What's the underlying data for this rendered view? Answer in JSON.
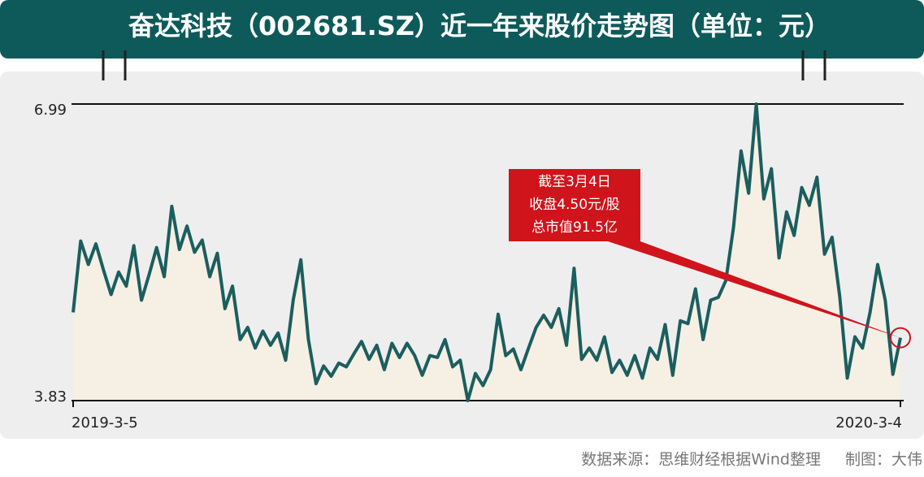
{
  "chart_data": {
    "type": "line",
    "title": "奋达科技（002681.SZ）近一年来股价走势图（单位：元）",
    "categories": [
      "2019-3-5",
      null,
      null,
      null,
      null,
      null,
      null,
      null,
      null,
      null,
      null,
      null,
      null,
      null,
      null,
      null,
      null,
      null,
      null,
      null,
      null,
      null,
      null,
      null,
      null,
      null,
      null,
      null,
      null,
      null,
      null,
      null,
      null,
      null,
      null,
      null,
      null,
      null,
      null,
      null,
      null,
      null,
      null,
      null,
      null,
      null,
      null,
      null,
      null,
      null,
      null,
      null,
      null,
      null,
      null,
      null,
      null,
      null,
      null,
      null,
      null,
      null,
      null,
      null,
      null,
      null,
      null,
      null,
      null,
      null,
      null,
      null,
      null,
      null,
      null,
      null,
      null,
      null,
      null,
      null,
      null,
      null,
      null,
      null,
      null,
      null,
      null,
      null,
      null,
      null,
      null,
      null,
      null,
      null,
      null,
      null,
      null,
      null,
      null,
      null,
      null,
      null,
      null,
      null,
      null,
      null,
      null,
      null,
      null,
      "2020-3-4"
    ],
    "values": [
      4.77,
      5.53,
      5.28,
      5.5,
      5.22,
      4.96,
      5.2,
      5.05,
      5.48,
      4.9,
      5.17,
      5.46,
      5.15,
      5.9,
      5.44,
      5.69,
      5.41,
      5.54,
      5.15,
      5.4,
      4.81,
      5.05,
      4.48,
      4.61,
      4.39,
      4.57,
      4.42,
      4.55,
      4.26,
      4.9,
      5.33,
      4.48,
      4.01,
      4.2,
      4.09,
      4.23,
      4.19,
      4.33,
      4.46,
      4.27,
      4.42,
      4.16,
      4.44,
      4.29,
      4.44,
      4.31,
      4.1,
      4.31,
      4.29,
      4.48,
      4.19,
      4.26,
      3.83,
      4.12,
      3.99,
      4.16,
      4.75,
      4.31,
      4.38,
      4.16,
      4.39,
      4.61,
      4.74,
      4.61,
      4.81,
      4.42,
      5.24,
      4.27,
      4.39,
      4.26,
      4.51,
      4.13,
      4.26,
      4.1,
      4.31,
      4.07,
      4.39,
      4.27,
      4.64,
      4.1,
      4.68,
      4.65,
      5.02,
      4.48,
      4.9,
      4.93,
      5.11,
      5.67,
      6.49,
      6.04,
      6.99,
      5.98,
      6.3,
      5.35,
      5.84,
      5.59,
      6.1,
      5.91,
      6.21,
      5.39,
      5.57,
      4.94,
      4.07,
      4.51,
      4.39,
      4.77,
      5.28,
      4.9,
      4.11,
      4.5
    ],
    "color": "#1b5e5e",
    "area_color": "#f6efe4",
    "ylim": [
      3.83,
      6.99
    ],
    "yticks": [
      3.83,
      6.99
    ],
    "annotation": [
      "截至3月4日",
      "收盘4.50元/股",
      "总市值91.5亿"
    ],
    "annotation_color": "#d0141c",
    "source": "数据来源：思维财经根据Wind整理",
    "credit": "制图：大伟"
  }
}
